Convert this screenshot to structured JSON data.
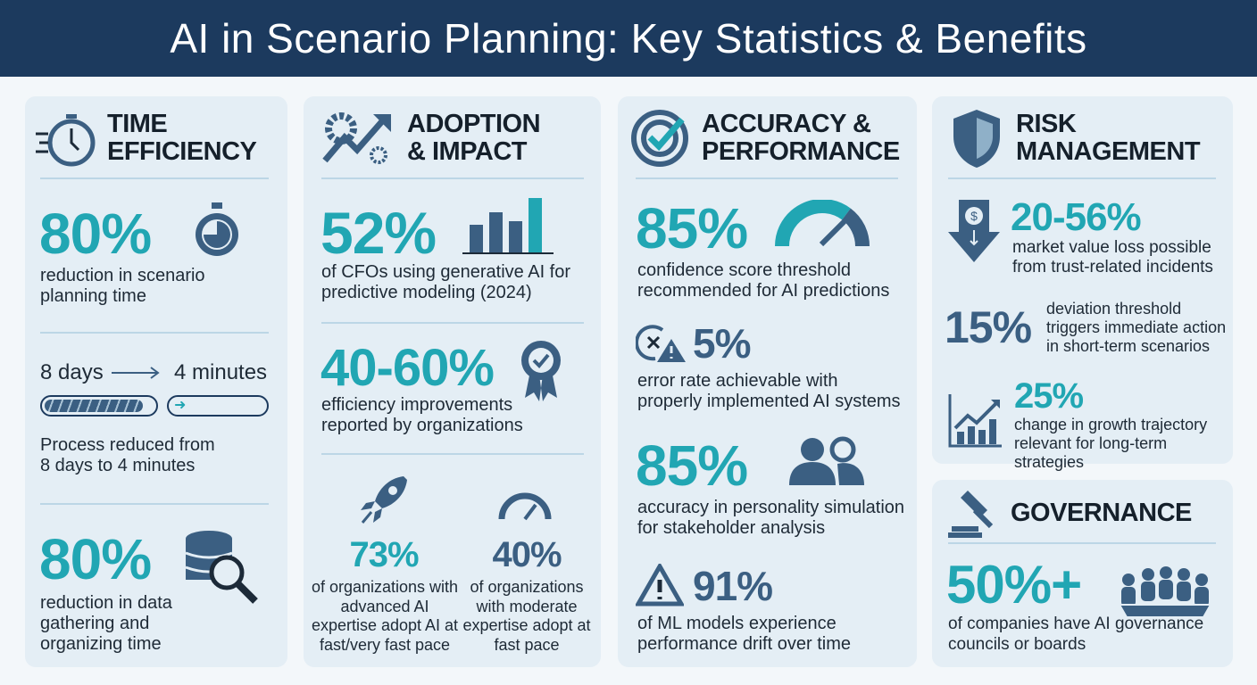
{
  "title": "AI in Scenario Planning: Key Statistics & Benefits",
  "colors": {
    "header": "#1c3a5e",
    "teal": "#21a6b3",
    "navy": "#3b5f82",
    "card": "#e4eef5"
  },
  "time": {
    "title1": "TIME",
    "title2": "EFFICIENCY",
    "icon": "stopwatch-icon",
    "stat1": "80%",
    "desc1": "reduction in scenario planning time",
    "from": "8 days",
    "to": "4 minutes",
    "process": "Process reduced from 8 days to 4 minutes",
    "stat2": "80%",
    "desc2": "reduction in data gathering and organizing time"
  },
  "adoption": {
    "title1": "ADOPTION",
    "title2": "& IMPACT",
    "icon": "gear-growth-icon",
    "stat1": "52%",
    "desc1": "of CFOs using generative AI for predictive modeling (2024)",
    "stat2": "40-60%",
    "desc2": "efficiency improvements reported by organizations",
    "stat3": "73%",
    "desc3": "of organizations with advanced AI expertise adopt AI at fast/very fast pace",
    "stat4": "40%",
    "desc4": "of organizations with moderate expertise adopt at fast pace"
  },
  "accuracy": {
    "title1": "ACCURACY &",
    "title2": "PERFORMANCE",
    "icon": "target-check-icon",
    "stat1": "85%",
    "desc1": "confidence score threshold recommended for AI predictions",
    "stat2": "5%",
    "desc2": "error rate achievable with properly implemented AI systems",
    "stat3": "85%",
    "desc3": "accuracy in personality simulation for stakeholder analysis",
    "stat4": "91%",
    "desc4": "of ML models experience performance drift over time"
  },
  "risk": {
    "title1": "RISK",
    "title2": "MANAGEMENT",
    "icon": "shield-icon",
    "stat1": "20-56%",
    "desc1": "market value loss possible from trust-related incidents",
    "stat2": "15%",
    "desc2": "deviation threshold triggers immediate action in short-term scenarios",
    "stat3": "25%",
    "desc3": "change in growth trajectory relevant for long-term strategies"
  },
  "governance": {
    "title": "GOVERNANCE",
    "icon": "gavel-icon",
    "stat": "50%+",
    "desc": "of companies have AI governance councils or boards"
  }
}
